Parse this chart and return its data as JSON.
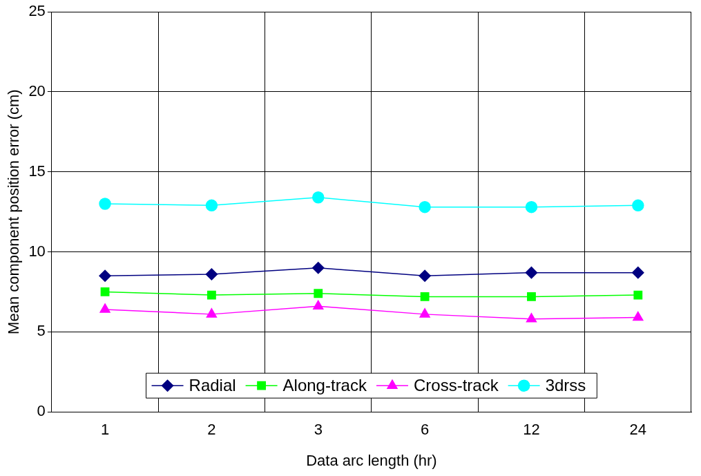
{
  "chart_data": {
    "type": "line",
    "xlabel": "Data arc length (hr)",
    "ylabel": "Mean component position error (cm)",
    "categories": [
      "1",
      "2",
      "3",
      "6",
      "12",
      "24"
    ],
    "series": [
      {
        "name": "Radial",
        "color": "#000080",
        "marker": "diamond",
        "values": [
          8.5,
          8.6,
          9.0,
          8.5,
          8.7,
          8.7
        ]
      },
      {
        "name": "Along-track",
        "color": "#00ff00",
        "marker": "square",
        "values": [
          7.5,
          7.3,
          7.4,
          7.2,
          7.2,
          7.3
        ]
      },
      {
        "name": "Cross-track",
        "color": "#ff00ff",
        "marker": "triangle",
        "values": [
          6.4,
          6.1,
          6.6,
          6.1,
          5.8,
          5.9
        ]
      },
      {
        "name": "3drss",
        "color": "#00ffff",
        "marker": "circle",
        "values": [
          13.0,
          12.9,
          13.4,
          12.8,
          12.8,
          12.9
        ]
      }
    ],
    "ylim": [
      0,
      25
    ],
    "yticks": [
      0,
      5,
      10,
      15,
      20,
      25
    ],
    "grid": true,
    "legend": "bottom"
  }
}
